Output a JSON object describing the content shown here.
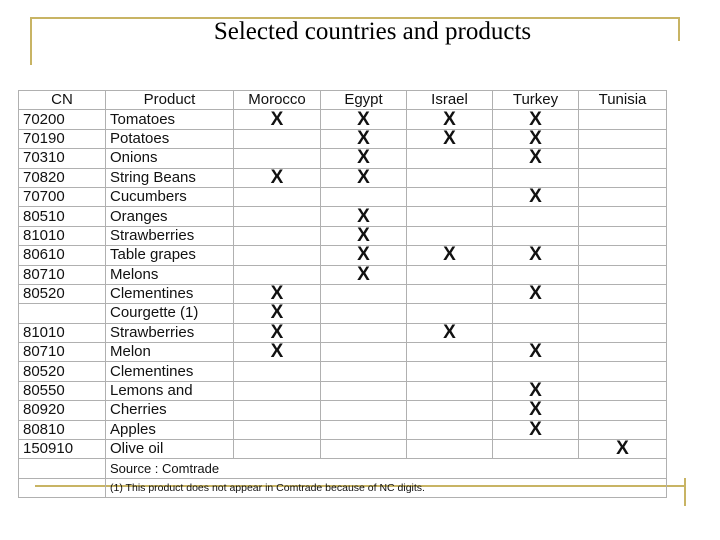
{
  "title": "Selected countries and products",
  "table": {
    "header": [
      "CN",
      "Product",
      "Morocco",
      "Egypt",
      "Israel",
      "Turkey",
      "Tunisia"
    ],
    "rows": [
      [
        "70200",
        "Tomatoes",
        "X",
        "X",
        "X",
        "X",
        null
      ],
      [
        "70190",
        "Potatoes",
        null,
        "X",
        "X",
        "X",
        null
      ],
      [
        "70310",
        "Onions",
        null,
        "X",
        null,
        "X",
        null
      ],
      [
        "70820",
        "String Beans",
        "X",
        "X",
        null,
        null,
        null
      ],
      [
        "70700",
        "Cucumbers",
        null,
        null,
        null,
        "X",
        null
      ],
      [
        "80510",
        "Oranges",
        null,
        "X",
        null,
        null,
        null
      ],
      [
        "81010",
        "Strawberries",
        null,
        "X",
        null,
        null,
        null
      ],
      [
        "80610",
        "Table grapes",
        null,
        "X",
        "X",
        "X",
        null
      ],
      [
        "80710",
        "Melons",
        null,
        "X",
        null,
        null,
        null
      ],
      [
        "80520",
        "Clementines",
        "X",
        null,
        null,
        "X",
        null
      ],
      [
        null,
        "Courgette (1)",
        "X",
        null,
        null,
        null,
        null
      ],
      [
        "81010",
        "Strawberries",
        "X",
        null,
        "X",
        null,
        null
      ],
      [
        "80710",
        "Melon",
        "X",
        null,
        null,
        "X",
        null
      ],
      [
        "80520",
        "Clementines",
        null,
        null,
        null,
        null,
        null
      ],
      [
        "80550",
        "Lemons and",
        null,
        null,
        null,
        "X",
        null
      ],
      [
        "80920",
        "Cherries",
        null,
        null,
        null,
        "X",
        null
      ],
      [
        "80810",
        "Apples",
        null,
        null,
        null,
        "X",
        null
      ],
      [
        "150910",
        "Olive oil",
        null,
        null,
        null,
        null,
        "X"
      ]
    ],
    "notes": [
      "Source : Comtrade",
      "(1) This product does not appear in Comtrade because of NC digits."
    ]
  }
}
